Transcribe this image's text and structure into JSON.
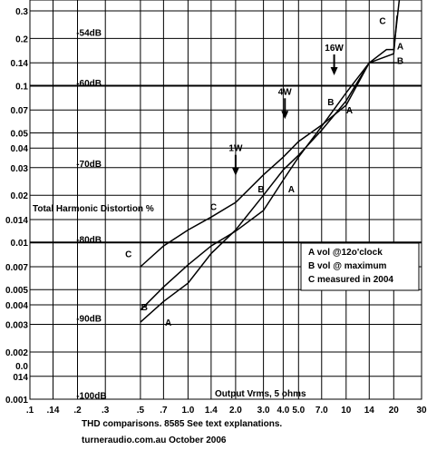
{
  "chart_data": {
    "type": "line",
    "x_scale": "log",
    "y_scale": "log",
    "xlim": [
      0.1,
      30
    ],
    "ylim": [
      0.001,
      0.3
    ],
    "x_ticks": [
      {
        "v": 0.1,
        "l": ".1"
      },
      {
        "v": 0.14,
        "l": ".14"
      },
      {
        "v": 0.2,
        "l": ".2"
      },
      {
        "v": 0.3,
        "l": ".3"
      },
      {
        "v": 0.5,
        "l": ".5"
      },
      {
        "v": 0.7,
        "l": ".7"
      },
      {
        "v": 1.0,
        "l": "1.0"
      },
      {
        "v": 1.4,
        "l": "1.4"
      },
      {
        "v": 2.0,
        "l": "2.0"
      },
      {
        "v": 3.0,
        "l": "3.0"
      },
      {
        "v": 4.0,
        "l": "4.0"
      },
      {
        "v": 5.0,
        "l": "5.0"
      },
      {
        "v": 7.0,
        "l": "7.0"
      },
      {
        "v": 10,
        "l": "10"
      },
      {
        "v": 14,
        "l": "14"
      },
      {
        "v": 20,
        "l": "20"
      },
      {
        "v": 30,
        "l": "30"
      }
    ],
    "y_ticks": [
      {
        "v": 0.3,
        "l": "0.3"
      },
      {
        "v": 0.2,
        "l": "0.2"
      },
      {
        "v": 0.14,
        "l": "0.14"
      },
      {
        "v": 0.1,
        "l": "0.1"
      },
      {
        "v": 0.07,
        "l": "0.07"
      },
      {
        "v": 0.05,
        "l": "0.05"
      },
      {
        "v": 0.04,
        "l": "0.04"
      },
      {
        "v": 0.03,
        "l": "0.03"
      },
      {
        "v": 0.02,
        "l": "0.02"
      },
      {
        "v": 0.014,
        "l": "0.014"
      },
      {
        "v": 0.01,
        "l": "0.01"
      },
      {
        "v": 0.007,
        "l": "0.007"
      },
      {
        "v": 0.005,
        "l": "0.005"
      },
      {
        "v": 0.004,
        "l": "0.004"
      },
      {
        "v": 0.003,
        "l": "0.003"
      },
      {
        "v": 0.002,
        "l": "0.002"
      },
      {
        "v": 0.0014,
        "l": "0.0\n014"
      },
      {
        "v": 0.001,
        "l": "0.001"
      }
    ],
    "gridlines_x": [
      0.1,
      0.14,
      0.2,
      0.3,
      0.5,
      0.7,
      1,
      1.4,
      2,
      3,
      4,
      5,
      7,
      10,
      14,
      20,
      30
    ],
    "gridlines_y": [
      0.3,
      0.2,
      0.14,
      0.1,
      0.07,
      0.05,
      0.04,
      0.03,
      0.02,
      0.014,
      0.01,
      0.007,
      0.005,
      0.004,
      0.003,
      0.002,
      0.0014,
      0.001
    ],
    "major_y": [
      0.1,
      0.01
    ],
    "series": [
      {
        "name": "A",
        "x": [
          0.5,
          0.7,
          1.0,
          1.4,
          2.0,
          3.0,
          4.0,
          5.0,
          7.0,
          10,
          14,
          20,
          21
        ],
        "y": [
          0.0031,
          0.0042,
          0.0055,
          0.0085,
          0.012,
          0.02,
          0.029,
          0.036,
          0.052,
          0.08,
          0.14,
          0.16,
          0.28
        ]
      },
      {
        "name": "B",
        "x": [
          0.5,
          0.7,
          1.0,
          1.4,
          2.0,
          3.0,
          4.0,
          5.0,
          7.0,
          10,
          14,
          20,
          21
        ],
        "y": [
          0.0037,
          0.0052,
          0.0072,
          0.0095,
          0.0118,
          0.016,
          0.025,
          0.035,
          0.055,
          0.09,
          0.14,
          0.14,
          0.14
        ]
      },
      {
        "name": "C",
        "x": [
          0.5,
          0.7,
          1.0,
          1.4,
          2.0,
          3.0,
          4.0,
          5.0,
          7.0,
          10,
          14,
          18,
          20,
          22
        ],
        "y": [
          0.007,
          0.0095,
          0.012,
          0.0145,
          0.018,
          0.027,
          0.035,
          0.044,
          0.056,
          0.075,
          0.14,
          0.17,
          0.17,
          0.4
        ]
      }
    ],
    "series_labels": [
      {
        "text": "A",
        "x": 0.75,
        "y": 0.0031
      },
      {
        "text": "B",
        "x": 0.53,
        "y": 0.0039
      },
      {
        "text": "C",
        "x": 0.42,
        "y": 0.0085
      },
      {
        "text": "A",
        "x": 4.5,
        "y": 0.022
      },
      {
        "text": "B",
        "x": 2.9,
        "y": 0.022
      },
      {
        "text": "C",
        "x": 1.45,
        "y": 0.017
      },
      {
        "text": "A",
        "x": 10.5,
        "y": 0.07
      },
      {
        "text": "B",
        "x": 8.0,
        "y": 0.079
      },
      {
        "text": "C",
        "x": 17,
        "y": 0.26
      },
      {
        "text": "A",
        "x": 22,
        "y": 0.18
      },
      {
        "text": "B",
        "x": 22,
        "y": 0.145
      }
    ],
    "db_labels": [
      {
        "text": "-54dB",
        "x": 0.3,
        "y": 0.22
      },
      {
        "text": "-60dB",
        "x": 0.3,
        "y": 0.105
      },
      {
        "text": "-70dB",
        "x": 0.3,
        "y": 0.032
      },
      {
        "text": "-80dB",
        "x": 0.3,
        "y": 0.0105
      },
      {
        "text": "-90dB",
        "x": 0.3,
        "y": 0.0033
      },
      {
        "text": "-100dB",
        "x": 0.3,
        "y": 0.00106
      }
    ],
    "power_markers": [
      {
        "text": "1W",
        "x": 2.0,
        "y": 0.027
      },
      {
        "text": "4W",
        "x": 4.1,
        "y": 0.062
      },
      {
        "text": "16W",
        "x": 8.4,
        "y": 0.118
      }
    ],
    "ylabel": "Total Harmonic Distortion %",
    "xlabel": "Output Vrms, 5 ohms",
    "legend": {
      "placement": "right",
      "entries": [
        "A vol @12o'clock",
        "B vol @ maximum",
        "C measured in 2004"
      ]
    },
    "caption": {
      "line1": "THD comparisons. 8585  See text explanations.",
      "line2": "turneraudio.com.au        October 2006"
    }
  }
}
